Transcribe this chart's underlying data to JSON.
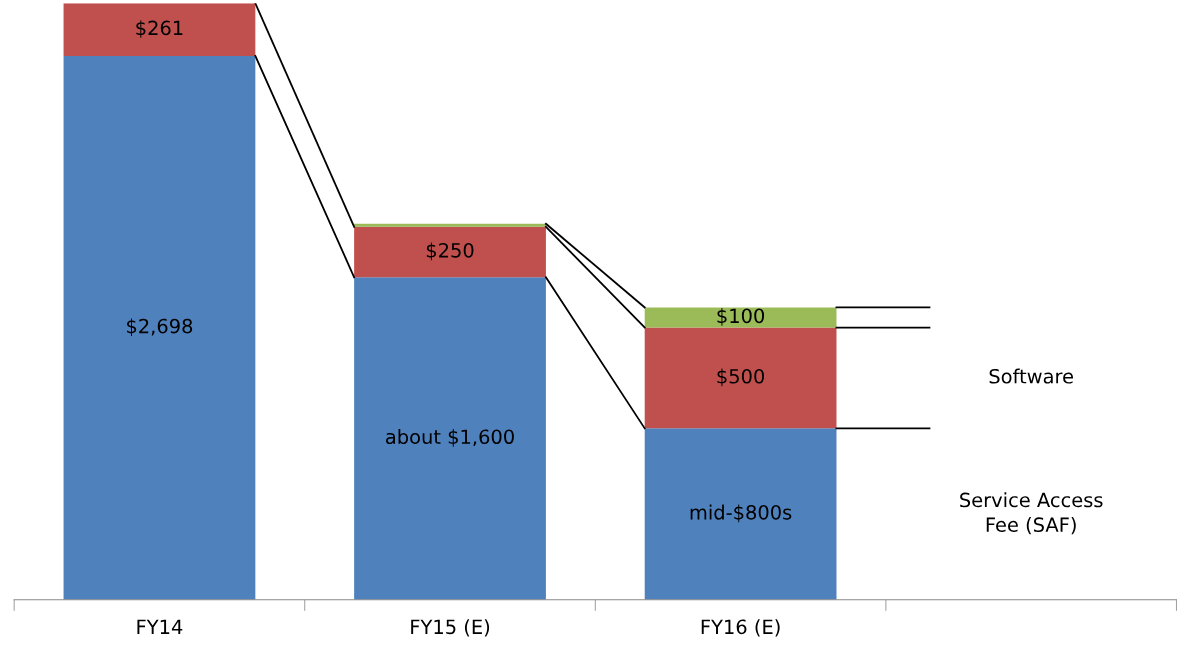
{
  "chart_data": {
    "type": "bar",
    "stacked": true,
    "categories": [
      "FY14",
      "FY15 (E)",
      "FY16 (E)",
      null
    ],
    "series": [
      {
        "name": "Service Access Fee (SAF)",
        "color": "#4f81bd",
        "values": [
          2698,
          1600,
          850,
          null
        ],
        "value_labels": [
          "$2,698",
          "about $1,600",
          "mid-$800s",
          null
        ]
      },
      {
        "name": "Software",
        "color": "#c0504d",
        "values": [
          261,
          250,
          500,
          null
        ],
        "value_labels": [
          "$261",
          "$250",
          "$500",
          null
        ]
      },
      {
        "color": "#9bbb59",
        "values": [
          null,
          15,
          100,
          null
        ],
        "value_labels": [
          null,
          null,
          "$100",
          null
        ]
      }
    ],
    "grid": false,
    "legend": false
  }
}
